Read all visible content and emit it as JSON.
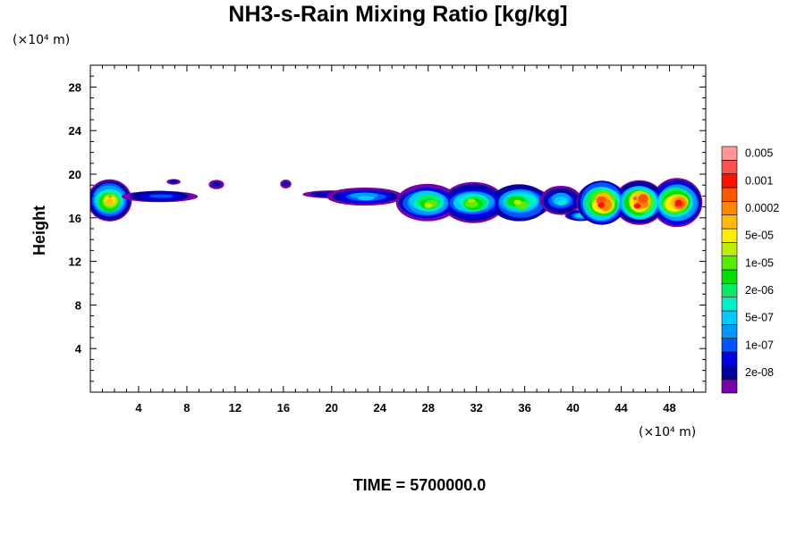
{
  "chart_data": {
    "type": "heatmap",
    "title": "NH3-s-Rain Mixing Ratio [kg/kg]",
    "ylabel": "Height",
    "xlabel": "",
    "x_unit_label": "(×10⁴ m)",
    "y_unit_label": "(×10⁴ m)",
    "xlim": [
      0,
      51
    ],
    "ylim": [
      0,
      30
    ],
    "x_ticks": [
      4,
      8,
      12,
      16,
      20,
      24,
      28,
      32,
      36,
      40,
      44,
      48
    ],
    "y_ticks": [
      4,
      8,
      12,
      16,
      20,
      24,
      28
    ],
    "grid": false,
    "legend_position": "right",
    "colorbar": {
      "colors": [
        "#7700aa",
        "#0000a0",
        "#0000e6",
        "#0055ff",
        "#0099ff",
        "#00ccff",
        "#00eec8",
        "#00ee66",
        "#00e000",
        "#55ee00",
        "#bbee00",
        "#ffee00",
        "#ffbb00",
        "#ff8800",
        "#ff5500",
        "#ff1100",
        "#ff5050",
        "#ff9999"
      ],
      "labels": [
        "2e-08",
        "1e-07",
        "5e-07",
        "2e-06",
        "1e-05",
        "5e-05",
        "0.0002",
        "0.001",
        "0.005"
      ]
    },
    "regions": [
      {
        "x0": 0,
        "x1": 3.2,
        "y0": 15.7,
        "y1": 19.5,
        "peak": 13
      },
      {
        "x0": 3,
        "x1": 8.5,
        "y0": 17.3,
        "y1": 18.6,
        "peak": 3
      },
      {
        "x0": 6.4,
        "x1": 7.4,
        "y0": 19.0,
        "y1": 19.6,
        "peak": 1
      },
      {
        "x0": 9.9,
        "x1": 11.0,
        "y0": 18.6,
        "y1": 19.5,
        "peak": 1
      },
      {
        "x0": 15.8,
        "x1": 16.6,
        "y0": 18.7,
        "y1": 19.5,
        "peak": 1
      },
      {
        "x0": 17.9,
        "x1": 22.0,
        "y0": 17.7,
        "y1": 18.6,
        "peak": 2
      },
      {
        "x0": 20.0,
        "x1": 25.5,
        "y0": 17.0,
        "y1": 18.9,
        "peak": 5
      },
      {
        "x0": 25.0,
        "x1": 38.5,
        "y0": 15.6,
        "y1": 19.2,
        "peak": 10
      },
      {
        "x0": 37.5,
        "x1": 40.5,
        "y0": 16.3,
        "y1": 18.9,
        "peak": 6
      },
      {
        "x0": 39.5,
        "x1": 41.8,
        "y0": 15.6,
        "y1": 16.8,
        "peak": 6
      },
      {
        "x0": 40.0,
        "x1": 51.0,
        "y0": 15.2,
        "y1": 19.6,
        "peak": 16
      }
    ],
    "time_label": "TIME = 5700000.0"
  }
}
